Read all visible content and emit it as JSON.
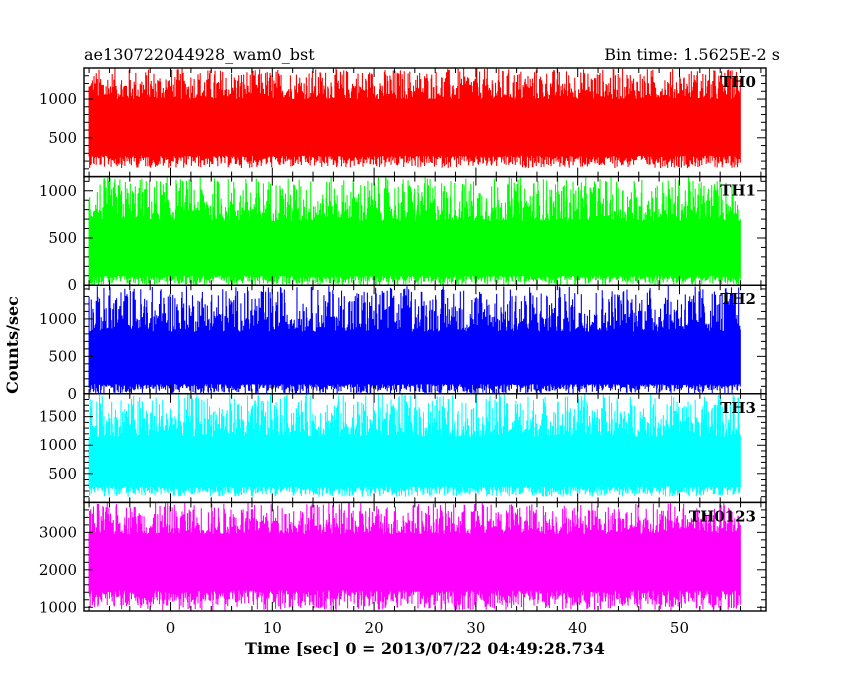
{
  "header": {
    "title_left": "ae130722044928_wam0_bst",
    "title_right": "Bin time: 1.5625E-2 s"
  },
  "chart_data": {
    "type": "line",
    "xlabel": "Time [sec] 0 = 2013/07/22 04:49:28.734",
    "ylabel": "Counts/sec",
    "xlim": [
      -8.5,
      58.5
    ],
    "data_x_range": [
      -8,
      56
    ],
    "xticks": [
      0,
      10,
      20,
      30,
      40,
      50
    ],
    "xtick_labels": [
      "0",
      "10",
      "20",
      "30",
      "40",
      "50"
    ],
    "bin_time_s": 0.015625,
    "panels": [
      {
        "name": "TH0",
        "color": "#ff0000",
        "ylim": [
          0,
          1400
        ],
        "yticks": [
          500,
          1000
        ],
        "ytick_labels": [
          "500",
          "1000"
        ],
        "band": [
          270,
          1000
        ],
        "spike_min": 110,
        "spike_max": 1400,
        "mean": 640
      },
      {
        "name": "TH1",
        "color": "#00ff00",
        "ylim": [
          0,
          1150
        ],
        "yticks": [
          0,
          500,
          1000
        ],
        "ytick_labels": [
          "0",
          "500",
          "1000"
        ],
        "band": [
          100,
          680
        ],
        "spike_min": 0,
        "spike_max": 1150,
        "mean": 390
      },
      {
        "name": "TH2",
        "color": "#0000ff",
        "ylim": [
          0,
          1450
        ],
        "yticks": [
          0,
          500,
          1000
        ],
        "ytick_labels": [
          "0",
          "500",
          "1000"
        ],
        "band": [
          130,
          830
        ],
        "spike_min": 0,
        "spike_max": 1450,
        "mean": 480
      },
      {
        "name": "TH3",
        "color": "#00ffff",
        "ylim": [
          0,
          1900
        ],
        "yticks": [
          500,
          1000,
          1500
        ],
        "ytick_labels": [
          "500",
          "1000",
          "1500"
        ],
        "band": [
          280,
          1150
        ],
        "spike_min": 100,
        "spike_max": 1900,
        "mean": 750
      },
      {
        "name": "TH0123",
        "color": "#ff00ff",
        "ylim": [
          900,
          3800
        ],
        "yticks": [
          1000,
          2000,
          3000
        ],
        "ytick_labels": [
          "1000",
          "2000",
          "3000"
        ],
        "band": [
          1450,
          2950
        ],
        "spike_min": 900,
        "spike_max": 3800,
        "mean": 2200
      }
    ]
  }
}
